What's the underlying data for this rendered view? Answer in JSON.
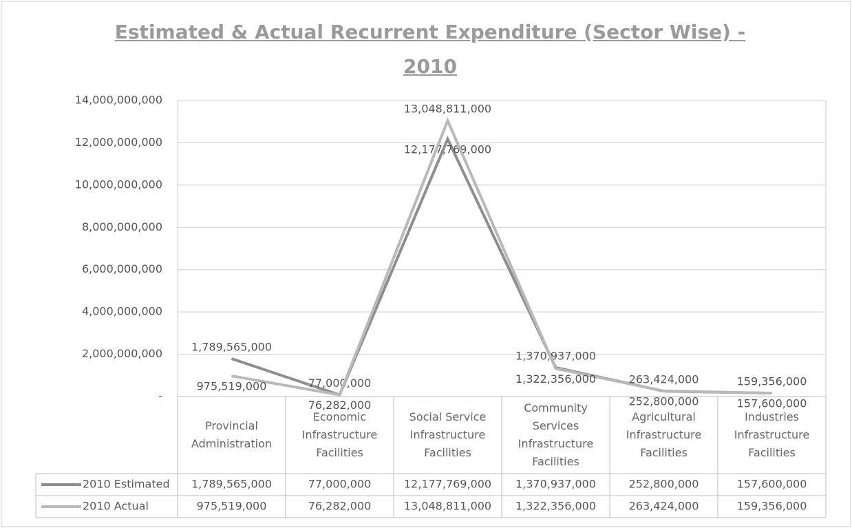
{
  "chart_data": {
    "type": "line",
    "title": "Estimated & Actual Recurrent Expenditure (Sector Wise) - 2010",
    "categories": [
      "Provincial Administration",
      "Economic Infrastructure Facilities",
      "Social Service Infrastructure Facilities",
      "Community Services Infrastructure Facilities",
      "Agricultural Infrastructure Facilities",
      "Industries Infrastructure Facilities"
    ],
    "series": [
      {
        "name": "2010 Estimated",
        "color": "#8e8e8e",
        "values": [
          1789565000,
          77000000,
          12177769000,
          1370937000,
          252800000,
          157600000
        ],
        "value_labels": [
          "1,789,565,000",
          "77,000,000",
          "12,177,769,000",
          "1,370,937,000",
          "252,800,000",
          "157,600,000"
        ]
      },
      {
        "name": "2010 Actual",
        "color": "#b9b9b9",
        "values": [
          975519000,
          76282000,
          13048811000,
          1322356000,
          263424000,
          159356000
        ],
        "value_labels": [
          "975,519,000",
          "76,282,000",
          "13,048,811,000",
          "1,322,356,000",
          "263,424,000",
          "159,356,000"
        ]
      }
    ],
    "ylim": [
      0,
      14000000000
    ],
    "yticks": [
      {
        "value": 0,
        "label": "-"
      },
      {
        "value": 2000000000,
        "label": "2,000,000,000"
      },
      {
        "value": 4000000000,
        "label": "4,000,000,000"
      },
      {
        "value": 6000000000,
        "label": "6,000,000,000"
      },
      {
        "value": 8000000000,
        "label": "8,000,000,000"
      },
      {
        "value": 10000000000,
        "label": "10,000,000,000"
      },
      {
        "value": 12000000000,
        "label": "12,000,000,000"
      },
      {
        "value": 14000000000,
        "label": "14,000,000,000"
      }
    ],
    "grid": true,
    "data_table": true
  }
}
